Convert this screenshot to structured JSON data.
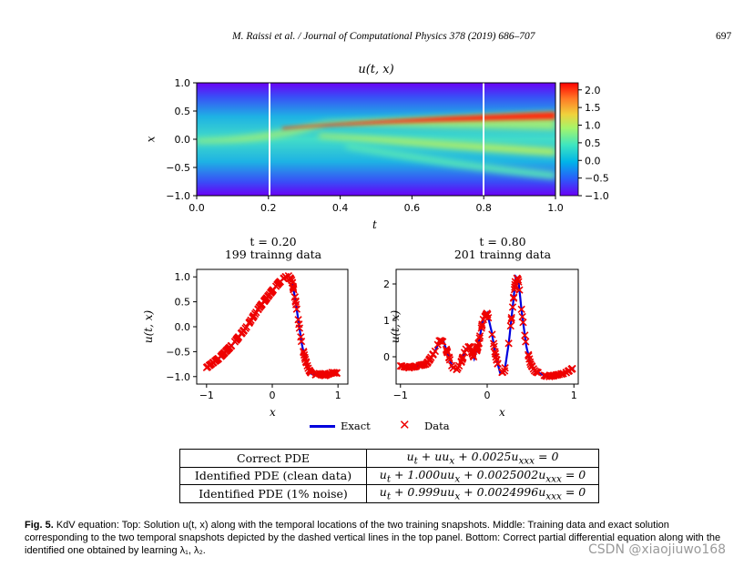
{
  "header": {
    "citation": "M. Raissi et al. / Journal of Computational Physics 378 (2019) 686–707",
    "page_number": "697"
  },
  "chart_data": [
    {
      "type": "heatmap",
      "title": "u(t, x)",
      "xlabel": "t",
      "ylabel": "x",
      "xlim": [
        0.0,
        1.0
      ],
      "ylim": [
        -1.0,
        1.0
      ],
      "xticks": [
        "0.0",
        "0.2",
        "0.4",
        "0.6",
        "0.8",
        "1.0"
      ],
      "yticks": [
        "1.0",
        "0.5",
        "0.0",
        "−0.5",
        "−1.0"
      ],
      "snapshot_lines": [
        0.2,
        0.8
      ],
      "colorbar": {
        "min": -1.0,
        "max": 2.2,
        "ticks": [
          "2.0",
          "1.5",
          "1.0",
          "0.5",
          "0.0",
          "−0.5",
          "−1.0"
        ]
      },
      "colors": [
        "#6a00f5",
        "#2a5dfa",
        "#00b4e8",
        "#3ee6c0",
        "#a6f56a",
        "#f0d23c",
        "#ff7a26",
        "#ff0000"
      ]
    },
    {
      "type": "line",
      "title_line1": "t = 0.20",
      "title_line2": "199 trainng data",
      "xlabel": "x",
      "ylabel": "u(t, x)",
      "xlim": [
        -1.15,
        1.15
      ],
      "ylim": [
        -1.15,
        1.15
      ],
      "xticks": [
        "−1",
        "0",
        "1"
      ],
      "yticks": [
        "1.0",
        "0.5",
        "0.0",
        "−0.5",
        "−1.0"
      ],
      "series": [
        {
          "name": "Exact",
          "color": "#0000dd",
          "x": [
            -1.0,
            -0.8,
            -0.6,
            -0.4,
            -0.2,
            0.0,
            0.1,
            0.2,
            0.25,
            0.3,
            0.35,
            0.4,
            0.45,
            0.5,
            0.55,
            0.6,
            0.65,
            0.7,
            0.8,
            0.9,
            1.0
          ],
          "y": [
            -0.82,
            -0.62,
            -0.35,
            -0.02,
            0.38,
            0.72,
            0.88,
            1.0,
            1.02,
            0.92,
            0.55,
            0.1,
            -0.35,
            -0.65,
            -0.85,
            -0.95,
            -0.97,
            -0.93,
            -0.98,
            -0.92,
            -0.93
          ]
        },
        {
          "name": "Data",
          "color": "#ee0000",
          "count": 199
        }
      ]
    },
    {
      "type": "line",
      "title_line1": "t = 0.80",
      "title_line2": "201 trainng data",
      "xlabel": "x",
      "ylabel": "u(t, x)",
      "xlim": [
        -1.05,
        1.05
      ],
      "ylim": [
        -0.75,
        2.4
      ],
      "xticks": [
        "−1",
        "0",
        "1"
      ],
      "yticks": [
        "2",
        "1",
        "0"
      ],
      "series": [
        {
          "name": "Exact",
          "color": "#0000dd",
          "x": [
            -1.0,
            -0.9,
            -0.8,
            -0.7,
            -0.6,
            -0.55,
            -0.5,
            -0.45,
            -0.4,
            -0.35,
            -0.3,
            -0.25,
            -0.2,
            -0.15,
            -0.1,
            -0.05,
            0.0,
            0.05,
            0.1,
            0.15,
            0.2,
            0.25,
            0.3,
            0.33,
            0.36,
            0.4,
            0.45,
            0.5,
            0.55,
            0.6,
            0.7,
            0.8,
            0.9,
            1.0
          ],
          "y": [
            -0.25,
            -0.3,
            -0.25,
            -0.2,
            0.15,
            0.45,
            0.4,
            0.05,
            -0.3,
            -0.35,
            -0.15,
            0.2,
            0.3,
            -0.05,
            0.35,
            1.0,
            1.2,
            0.7,
            0.0,
            -0.45,
            -0.4,
            0.4,
            1.5,
            2.2,
            2.1,
            1.2,
            0.3,
            -0.2,
            -0.4,
            -0.45,
            -0.55,
            -0.5,
            -0.45,
            -0.3
          ]
        },
        {
          "name": "Data",
          "color": "#ee0000",
          "count": 201
        }
      ]
    }
  ],
  "legend": {
    "exact": "Exact",
    "data": "Data"
  },
  "table": {
    "rows": [
      {
        "label": "Correct PDE",
        "equation": "u_t + uu_x + 0.0025u_xxx = 0"
      },
      {
        "label": "Identified PDE (clean data)",
        "equation": "u_t + 1.000uu_x + 0.0025002u_xxx = 0"
      },
      {
        "label": "Identified PDE (1% noise)",
        "equation": "u_t + 0.999uu_x + 0.0024996u_xxx = 0"
      }
    ]
  },
  "caption": {
    "fig_label": "Fig. 5.",
    "text": "KdV equation: Top: Solution u(t, x) along with the temporal locations of the two training snapshots. Middle: Training data and exact solution corresponding to the two temporal snapshots depicted by the dashed vertical lines in the top panel. Bottom: Correct partial differential equation along with the identified one obtained by learning λ₁, λ₂."
  },
  "watermark": "CSDN @xiaojiuwo168"
}
